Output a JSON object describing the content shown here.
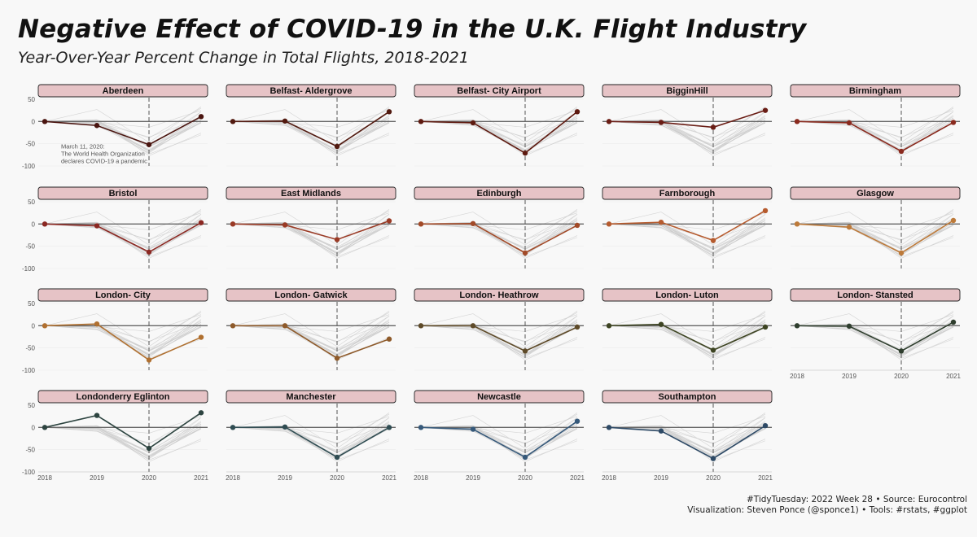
{
  "header": {
    "title": "Negative Effect of COVID-19 in the U.K. Flight Industry",
    "subtitle": "Year-Over-Year Percent Change in Total Flights, 2018-2021"
  },
  "caption": {
    "line1": "#TidyTuesday: 2022 Week 28 • Source: Eurocontrol",
    "line2": "Visualization: Steven Ponce (@sponce1) • Tools: #rstats, #ggplot"
  },
  "colors": {
    "background": "#f8f8f8",
    "strip_fill": "#e6c3c6",
    "strip_border": "#222222",
    "context_lines": "#cccccc",
    "zero_line": "#666666",
    "vline": "#555555"
  },
  "chart_data": {
    "type": "line",
    "facet": "small-multiples",
    "x": [
      "2018",
      "2019",
      "2020",
      "2021"
    ],
    "y_ticks": [
      50,
      0,
      -50,
      -100
    ],
    "ylim": [
      -100,
      50
    ],
    "vline_at": "2020",
    "annotation": {
      "panel": "Aberdeen",
      "lines": [
        "March 11, 2020:",
        "The World Health Organization",
        "declares COVID-19 a pandemic"
      ]
    },
    "series": [
      {
        "name": "Aberdeen",
        "values": [
          0,
          -9,
          -52,
          11
        ],
        "color": "#4a1510"
      },
      {
        "name": "Belfast- Aldergrove",
        "values": [
          0,
          1,
          -56,
          22
        ],
        "color": "#521a10"
      },
      {
        "name": "Belfast- City Airport",
        "values": [
          0,
          -3,
          -71,
          22
        ],
        "color": "#5e1a10"
      },
      {
        "name": "BigginHill",
        "values": [
          0,
          -2,
          -13,
          25
        ],
        "color": "#6a1d15"
      },
      {
        "name": "Birmingham",
        "values": [
          0,
          -3,
          -67,
          -2
        ],
        "color": "#8a2a1e"
      },
      {
        "name": "Bristol",
        "values": [
          0,
          -4,
          -63,
          3
        ],
        "color": "#8b2822"
      },
      {
        "name": "East Midlands",
        "values": [
          0,
          -2,
          -35,
          7
        ],
        "color": "#9a3a25"
      },
      {
        "name": "Edinburgh",
        "values": [
          0,
          1,
          -65,
          -3
        ],
        "color": "#a24a28"
      },
      {
        "name": "Farnborough",
        "values": [
          0,
          4,
          -37,
          30
        ],
        "color": "#b65b2e"
      },
      {
        "name": "Glasgow",
        "values": [
          0,
          -7,
          -65,
          8
        ],
        "color": "#bd7a3a"
      },
      {
        "name": "London- City",
        "values": [
          0,
          4,
          -77,
          -26
        ],
        "color": "#b07030"
      },
      {
        "name": "London- Gatwick",
        "values": [
          0,
          0,
          -73,
          -30
        ],
        "color": "#8e5a2a"
      },
      {
        "name": "London- Heathrow",
        "values": [
          0,
          0,
          -57,
          -3
        ],
        "color": "#5e4a28"
      },
      {
        "name": "London- Luton",
        "values": [
          0,
          3,
          -55,
          -3
        ],
        "color": "#3d4422"
      },
      {
        "name": "London- Stansted",
        "values": [
          0,
          -1,
          -57,
          8
        ],
        "color": "#2f3e2e"
      },
      {
        "name": "Londonderry Eglinton",
        "values": [
          0,
          27,
          -47,
          33
        ],
        "color": "#2d4440"
      },
      {
        "name": "Manchester",
        "values": [
          0,
          1,
          -67,
          0
        ],
        "color": "#2f4c52"
      },
      {
        "name": "Newcastle",
        "values": [
          0,
          -4,
          -67,
          14
        ],
        "color": "#36597a"
      },
      {
        "name": "Southampton",
        "values": [
          0,
          -8,
          -70,
          4
        ],
        "color": "#2e4a66"
      }
    ]
  }
}
